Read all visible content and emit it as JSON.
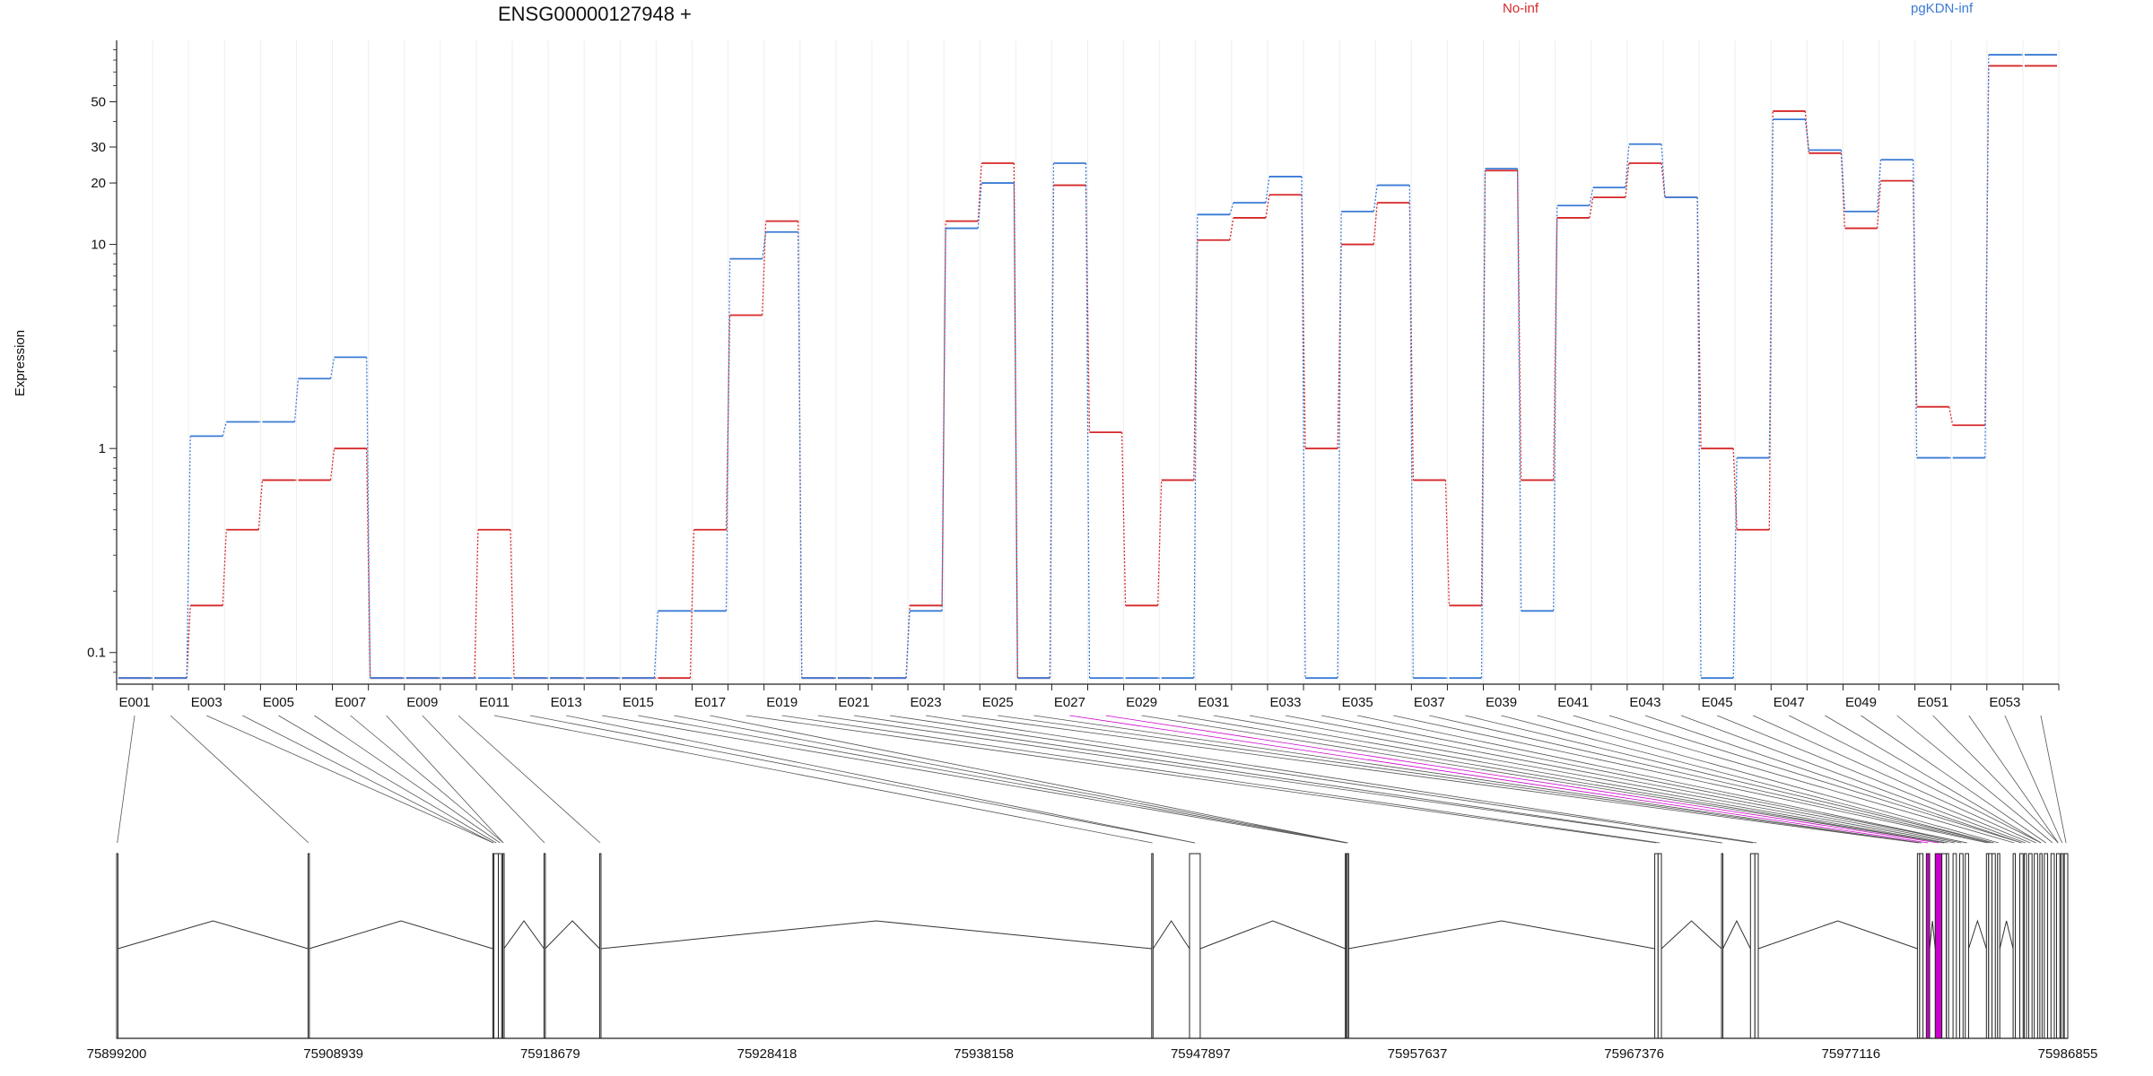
{
  "chart_data": {
    "type": "line",
    "title": "ENSG00000127948 +",
    "ylabel": "Expression",
    "yscale": "log",
    "yticks": [
      0.1,
      1,
      10,
      20,
      30,
      50
    ],
    "ylim": [
      0.07,
      100
    ],
    "categories": [
      "E001",
      "E002",
      "E003",
      "E004",
      "E005",
      "E006",
      "E007",
      "E008",
      "E009",
      "E010",
      "E011",
      "E012",
      "E013",
      "E014",
      "E015",
      "E016",
      "E017",
      "E018",
      "E019",
      "E020",
      "E021",
      "E022",
      "E023",
      "E024",
      "E025",
      "E026",
      "E027",
      "E028",
      "E029",
      "E030",
      "E031",
      "E032",
      "E033",
      "E034",
      "E035",
      "E036",
      "E037",
      "E038",
      "E039",
      "E040",
      "E041",
      "E042",
      "E043",
      "E044",
      "E045",
      "E046",
      "E047",
      "E048",
      "E049",
      "E050",
      "E051",
      "E052",
      "E053",
      "E054"
    ],
    "xtick_labels": [
      "E001",
      "E003",
      "E005",
      "E007",
      "E009",
      "E011",
      "E013",
      "E015",
      "E017",
      "E019",
      "E021",
      "E023",
      "E025",
      "E027",
      "E029",
      "E031",
      "E033",
      "E035",
      "E037",
      "E039",
      "E041",
      "E043",
      "E045",
      "E047",
      "E049",
      "E051",
      "E053"
    ],
    "legend_placement": "top",
    "series": [
      {
        "name": "No-inf",
        "color": "#d62728",
        "values": [
          0.075,
          0.075,
          0.17,
          0.4,
          0.7,
          0.7,
          1.0,
          0.075,
          0.075,
          0.075,
          0.4,
          0.075,
          0.075,
          0.075,
          0.075,
          0.075,
          0.4,
          4.5,
          13,
          0.075,
          0.075,
          0.075,
          0.17,
          13,
          25,
          0.075,
          19.5,
          1.2,
          0.17,
          0.7,
          10.5,
          13.5,
          17.5,
          1.0,
          10,
          16,
          0.7,
          0.17,
          23,
          0.7,
          13.5,
          17,
          25,
          17,
          1.0,
          0.4,
          45,
          28,
          12,
          20.5,
          1.6,
          1.3,
          75,
          75
        ]
      },
      {
        "name": "pgKDN-inf",
        "color": "#3a7bd5",
        "values": [
          0.075,
          0.075,
          1.15,
          1.35,
          1.35,
          2.2,
          2.8,
          0.075,
          0.075,
          0.075,
          0.075,
          0.075,
          0.075,
          0.075,
          0.075,
          0.16,
          0.16,
          8.5,
          11.5,
          0.075,
          0.075,
          0.075,
          0.16,
          12,
          20,
          0.075,
          25,
          0.075,
          0.075,
          0.075,
          14,
          16,
          21.5,
          0.075,
          14.5,
          19.5,
          0.075,
          0.075,
          23.5,
          0.16,
          15.5,
          19,
          31,
          17,
          0.075,
          0.9,
          41,
          29,
          14.5,
          26,
          0.9,
          0.9,
          85,
          85
        ]
      }
    ],
    "genome_axis": {
      "tick_labels": [
        "75899200",
        "75908939",
        "75918679",
        "75928418",
        "75938158",
        "75947897",
        "75957637",
        "75967376",
        "75977116",
        "75986855"
      ],
      "start": 75899200,
      "end": 75986855,
      "highlight_color": "#cc00cc",
      "exons": [
        [
          75899200,
          75899260
        ],
        [
          75907800,
          75907850
        ],
        [
          75916100,
          75916150
        ],
        [
          75916150,
          75916350
        ],
        [
          75916350,
          75916500
        ],
        [
          75916550,
          75916600
        ],
        [
          75918400,
          75918450
        ],
        [
          75920900,
          75920950
        ],
        [
          75945700,
          75945760
        ],
        [
          75947400,
          75947880
        ],
        [
          75954400,
          75954440
        ],
        [
          75954440,
          75954490
        ],
        [
          75954490,
          75954540
        ],
        [
          75968300,
          75968450
        ],
        [
          75968450,
          75968600
        ],
        [
          75971300,
          75971360
        ],
        [
          75972600,
          75972800
        ],
        [
          75972800,
          75972950
        ],
        [
          75980100,
          75980200
        ],
        [
          75980200,
          75980350
        ],
        [
          75980500,
          75980650
        ],
        [
          75980900,
          75981200
        ],
        [
          75981200,
          75981400
        ],
        [
          75981400,
          75981500
        ],
        [
          75981700,
          75981850
        ],
        [
          75982000,
          75982150
        ],
        [
          75982250,
          75982400
        ],
        [
          75983200,
          75983300
        ],
        [
          75983300,
          75983450
        ],
        [
          75983450,
          75983600
        ],
        [
          75983700,
          75983800
        ],
        [
          75984400,
          75984500
        ],
        [
          75984700,
          75984850
        ],
        [
          75984900,
          75985000
        ],
        [
          75985100,
          75985250
        ],
        [
          75985350,
          75985500
        ],
        [
          75985600,
          75985700
        ],
        [
          75985800,
          75985950
        ],
        [
          75986100,
          75986250
        ],
        [
          75986350,
          75986500
        ],
        [
          75986550,
          75986650
        ],
        [
          75986700,
          75986855
        ]
      ],
      "highlighted_exon_indices": [
        20,
        21
      ]
    }
  }
}
